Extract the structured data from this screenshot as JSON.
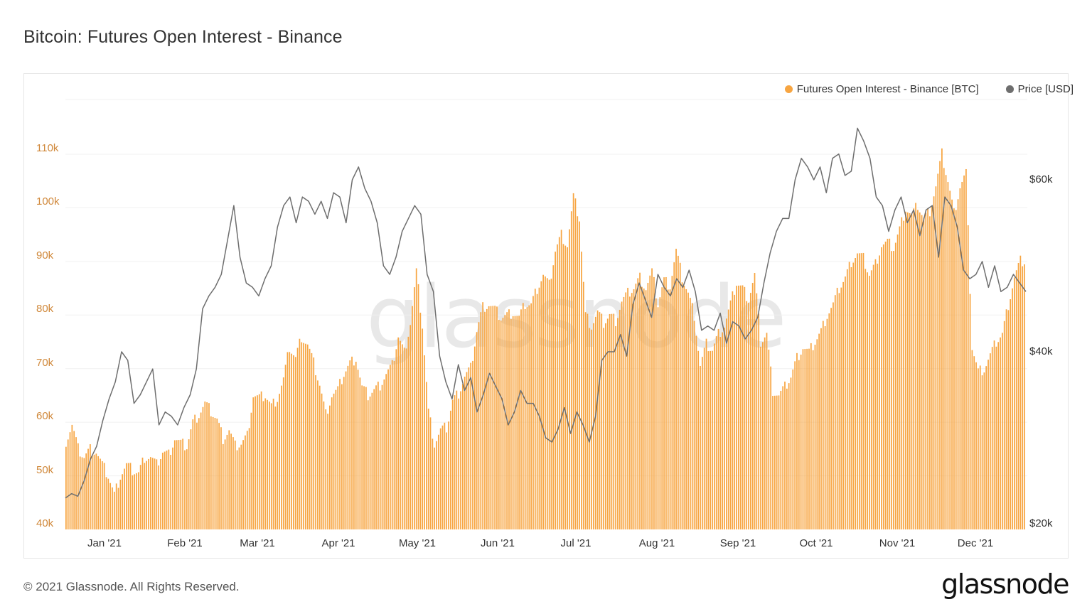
{
  "header": {
    "title": "Bitcoin: Futures Open Interest - Binance"
  },
  "legend": [
    {
      "label": "Futures Open Interest - Binance [BTC]",
      "color": "#f7a541"
    },
    {
      "label": "Price [USD]",
      "color": "#6e6e6e"
    }
  ],
  "footer": {
    "copyright": "© 2021 Glassnode. All Rights Reserved.",
    "logo": "glassnode"
  },
  "watermark": "glassnode",
  "axes": {
    "left_ticks": [
      "110k",
      "100k",
      "90k",
      "80k",
      "70k",
      "60k",
      "50k",
      "40k"
    ],
    "right_ticks": [
      "$60k",
      "$40k",
      "$20k"
    ],
    "x_ticks": [
      "Jan '21",
      "Feb '21",
      "Mar '21",
      "Apr '21",
      "May '21",
      "Jun '21",
      "Jul '21",
      "Aug '21",
      "Sep '21",
      "Oct '21",
      "Nov '21",
      "Dec '21"
    ]
  },
  "chart_data": {
    "type": "bar+line",
    "title": "Bitcoin: Futures Open Interest - Binance",
    "xlabel": "",
    "ylabel_left": "Futures Open Interest - Binance [BTC]",
    "ylabel_right": "Price [USD]",
    "ylim_left": [
      40000,
      115000
    ],
    "ylim_right": [
      20000,
      66000
    ],
    "x_range": [
      "2020-12-17",
      "2021-12-20"
    ],
    "sample_interval_days": 3,
    "grid": true,
    "legend_position": "top-right",
    "series": [
      {
        "name": "Futures Open Interest - Binance [BTC]",
        "type": "bar",
        "axis": "left",
        "color": "#f7a541",
        "values": [
          56500,
          59500,
          55000,
          53500,
          55000,
          54500,
          52000,
          50000,
          46500,
          50000,
          52000,
          51000,
          50500,
          53500,
          53500,
          52000,
          54500,
          54000,
          57000,
          56000,
          55500,
          60000,
          61500,
          63500,
          62000,
          60500,
          57000,
          58500,
          55500,
          56000,
          57500,
          65000,
          64500,
          65000,
          63000,
          64500,
          68000,
          74000,
          72000,
          76000,
          74500,
          71000,
          67000,
          61500,
          65000,
          66000,
          69000,
          71000,
          72000,
          66500,
          65000,
          66000,
          67000,
          69000,
          70500,
          76000,
          73000,
          78500,
          88000,
          78000,
          62000,
          56000,
          58500,
          59000,
          64000,
          65500,
          68500,
          70000,
          77000,
          81500,
          82000,
          81000,
          79500,
          80000,
          80500,
          79500,
          82000,
          82000,
          85000,
          87500,
          85500,
          92000,
          95000,
          93000,
          102000,
          98000,
          80000,
          78000,
          80500,
          78500,
          80000,
          79000,
          82500,
          84000,
          85000,
          87000,
          85000,
          88000,
          82000,
          86500,
          85500,
          92000,
          87000,
          84000,
          80000,
          70500,
          74500,
          73500,
          76500,
          78000,
          82000,
          86000,
          85000,
          83000,
          87500,
          75000,
          76500,
          66000,
          65000,
          66500,
          68500,
          72000,
          74000,
          73000,
          75000,
          77000,
          80000,
          82000,
          85000,
          87000,
          90000,
          91500,
          90500,
          87500,
          89500,
          93000,
          93500,
          92500,
          96000,
          100000,
          98500,
          100500,
          98000,
          99500,
          104000,
          110000,
          105000,
          99000,
          104000,
          106500,
          74000,
          69500,
          70000,
          72500,
          75000,
          76500,
          82000,
          87000,
          90000
        ]
      },
      {
        "name": "Price [USD]",
        "type": "line",
        "axis": "right",
        "color": "#6e6e6e",
        "values": [
          23000,
          23500,
          23200,
          25000,
          27500,
          29000,
          32000,
          34500,
          36500,
          40000,
          39000,
          34000,
          35000,
          36500,
          38000,
          31500,
          33000,
          32500,
          31500,
          33500,
          35000,
          38000,
          45000,
          46500,
          47500,
          49000,
          53000,
          57000,
          51000,
          48000,
          47500,
          46500,
          48500,
          50000,
          54500,
          57000,
          58000,
          55000,
          58000,
          57500,
          56000,
          57500,
          55500,
          58500,
          58000,
          55000,
          60000,
          61500,
          59000,
          57500,
          55000,
          50000,
          49000,
          51000,
          54000,
          55500,
          57000,
          56000,
          49000,
          47000,
          39500,
          36500,
          34500,
          38500,
          35500,
          37000,
          33000,
          35000,
          37500,
          36000,
          34500,
          31500,
          33000,
          35500,
          34000,
          34000,
          32500,
          30000,
          29500,
          31000,
          33500,
          30500,
          33000,
          31500,
          29500,
          32500,
          39000,
          40000,
          40000,
          42000,
          39500,
          45500,
          48000,
          46000,
          44000,
          49000,
          47500,
          46500,
          48500,
          47500,
          49500,
          47000,
          42500,
          43000,
          42500,
          44500,
          41000,
          43500,
          43000,
          41500,
          42500,
          44000,
          48000,
          51500,
          54000,
          55500,
          55500,
          60000,
          62500,
          61500,
          60000,
          61500,
          58500,
          62500,
          63000,
          60500,
          61000,
          66000,
          64500,
          62500,
          58000,
          57000,
          54000,
          56500,
          58000,
          55000,
          56500,
          53500,
          56500,
          57000,
          51000,
          58000,
          57000,
          54500,
          49500,
          48500,
          49000,
          50500,
          47500,
          50000,
          47000,
          47500,
          49000,
          48000,
          47000
        ]
      }
    ]
  }
}
